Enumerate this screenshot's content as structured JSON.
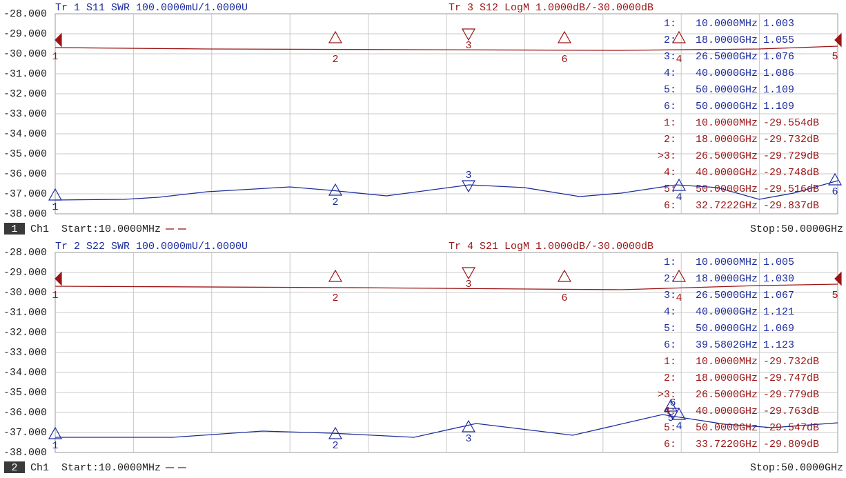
{
  "panels": [
    {
      "left_title": "Tr 1  S11 SWR 100.0000mU/1.0000U",
      "right_title": "Tr 3  S12 LogM 1.0000dB/-30.0000dB",
      "yticks": [
        "-28.000",
        "-29.000",
        "-30.000",
        "-31.000",
        "-32.000",
        "-33.000",
        "-34.000",
        "-35.000",
        "-36.000",
        "-37.000",
        "-38.000"
      ],
      "markers": [
        {
          "id": "1:",
          "freq": "10.0000MHz",
          "value": "1.003"
        },
        {
          "id": "2:",
          "freq": "18.0000GHz",
          "value": "1.055"
        },
        {
          "id": "3:",
          "freq": "26.5000GHz",
          "value": "1.076"
        },
        {
          "id": "4:",
          "freq": "40.0000GHz",
          "value": "1.086"
        },
        {
          "id": "5:",
          "freq": "50.0000GHz",
          "value": "1.109"
        },
        {
          "id": "6:",
          "freq": "50.0000GHz",
          "value": "1.109"
        },
        {
          "id": "1:",
          "freq": "10.0000MHz",
          "value": "-29.554dB"
        },
        {
          "id": "2:",
          "freq": "18.0000GHz",
          "value": "-29.732dB"
        },
        {
          "id": ">3:",
          "freq": "26.5000GHz",
          "value": "-29.729dB"
        },
        {
          "id": "4:",
          "freq": "40.0000GHz",
          "value": "-29.748dB"
        },
        {
          "id": "5:",
          "freq": "50.0000GHz",
          "value": "-29.516dB"
        },
        {
          "id": "6:",
          "freq": "32.7222GHz",
          "value": "-29.837dB"
        }
      ],
      "red_marker_labels": [
        "1",
        "2",
        "3",
        "6",
        "4",
        "5"
      ],
      "blue_marker_labels": [
        "1",
        "2",
        "3",
        "4",
        "6"
      ],
      "channel": "1",
      "ch": "Ch1",
      "start": "Start:10.0000MHz",
      "stop": "Stop:50.0000GHz"
    },
    {
      "left_title": "Tr 2  S22 SWR 100.0000mU/1.0000U",
      "right_title": "Tr 4  S21 LogM 1.0000dB/-30.0000dB",
      "yticks": [
        "-28.000",
        "-29.000",
        "-30.000",
        "-31.000",
        "-32.000",
        "-33.000",
        "-34.000",
        "-35.000",
        "-36.000",
        "-37.000",
        "-38.000"
      ],
      "markers": [
        {
          "id": "1:",
          "freq": "10.0000MHz",
          "value": "1.005"
        },
        {
          "id": "2:",
          "freq": "18.0000GHz",
          "value": "1.030"
        },
        {
          "id": "3:",
          "freq": "26.5000GHz",
          "value": "1.067"
        },
        {
          "id": "4:",
          "freq": "40.0000GHz",
          "value": "1.121"
        },
        {
          "id": "5:",
          "freq": "50.0000GHz",
          "value": "1.069"
        },
        {
          "id": "6:",
          "freq": "39.5802GHz",
          "value": "1.123"
        },
        {
          "id": "1:",
          "freq": "10.0000MHz",
          "value": "-29.732dB"
        },
        {
          "id": "2:",
          "freq": "18.0000GHz",
          "value": "-29.747dB"
        },
        {
          "id": ">3:",
          "freq": "26.5000GHz",
          "value": "-29.779dB"
        },
        {
          "id": "4:",
          "freq": "40.0000GHz",
          "value": "-29.763dB"
        },
        {
          "id": "5:",
          "freq": "50.0000GHz",
          "value": "-29.547dB"
        },
        {
          "id": "6:",
          "freq": "33.7220GHz",
          "value": "-29.809dB"
        }
      ],
      "red_marker_labels": [
        "1",
        "2",
        "3",
        "6",
        "4",
        "5"
      ],
      "blue_marker_labels": [
        "1",
        "2",
        "3",
        "4",
        "5",
        "6"
      ],
      "channel": "2",
      "ch": "Ch1",
      "start": "Start:10.0000MHz",
      "stop": "Stop:50.0000GHz"
    }
  ]
}
